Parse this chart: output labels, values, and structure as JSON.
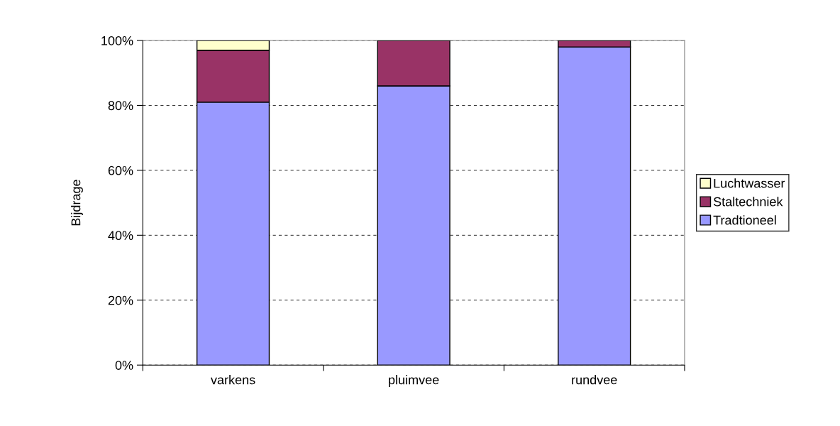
{
  "chart_data": {
    "type": "bar",
    "stacked": true,
    "ylabel": "Bijdrage",
    "categories": [
      "varkens",
      "pluimvee",
      "rundvee"
    ],
    "series": [
      {
        "name": "Tradtioneel",
        "color": "#9999ff",
        "values": [
          81,
          86,
          98
        ]
      },
      {
        "name": "Staltechniek",
        "color": "#993366",
        "values": [
          16,
          14,
          2
        ]
      },
      {
        "name": "Luchtwasser",
        "color": "#ffffcc",
        "values": [
          3,
          null,
          null
        ]
      }
    ],
    "ylim": [
      0,
      100
    ],
    "yticks": [
      {
        "value": 0,
        "label": "0%"
      },
      {
        "value": 20,
        "label": "20%"
      },
      {
        "value": 40,
        "label": "40%"
      },
      {
        "value": 60,
        "label": "60%"
      },
      {
        "value": 80,
        "label": "80%"
      },
      {
        "value": 100,
        "label": "100%"
      }
    ],
    "grid": "y",
    "legend": "right"
  }
}
